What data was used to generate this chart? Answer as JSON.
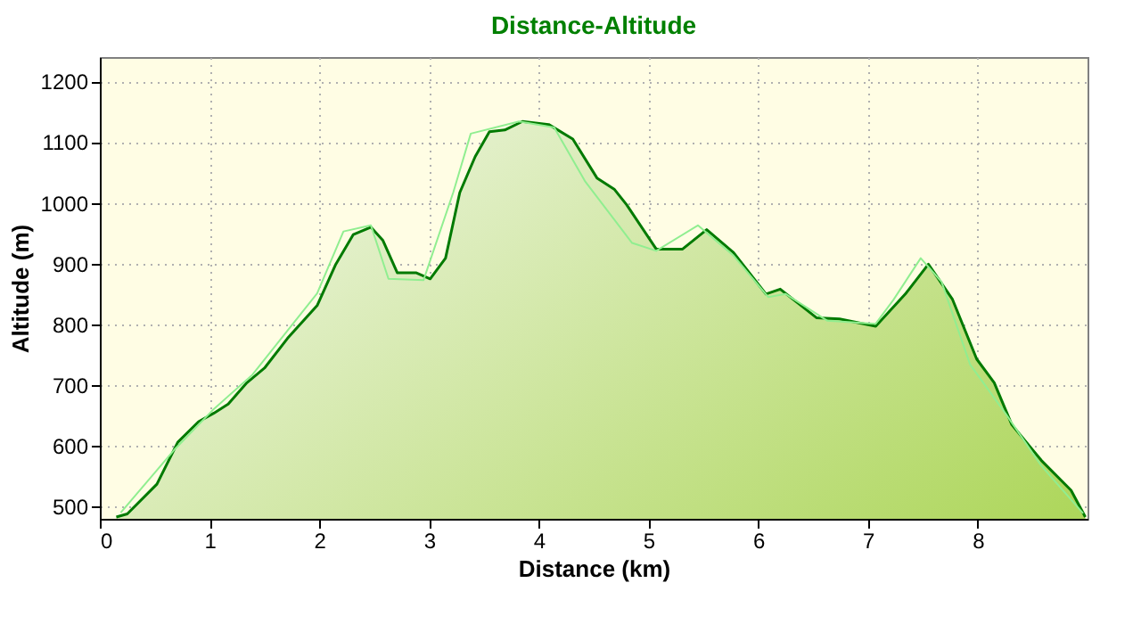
{
  "chart_data": {
    "type": "area",
    "title": "Distance-Altitude",
    "xlabel": "Distance (km)",
    "ylabel": "Altitude (m)",
    "xlim": [
      0,
      9
    ],
    "xticks": [
      0,
      1,
      2,
      3,
      4,
      5,
      6,
      7,
      8
    ],
    "ylim": [
      480,
      1240
    ],
    "yticks": [
      500,
      600,
      700,
      800,
      900,
      1000,
      1100,
      1200
    ],
    "grid": true,
    "series": [
      {
        "color": "#007a00",
        "x": [
          0.15,
          0.25,
          0.52,
          0.71,
          0.9,
          1.04,
          1.17,
          1.34,
          1.5,
          1.71,
          1.98,
          2.15,
          2.31,
          2.47,
          2.58,
          2.71,
          2.88,
          3.01,
          3.15,
          3.28,
          3.42,
          3.55,
          3.69,
          3.85,
          4.09,
          4.31,
          4.53,
          4.69,
          4.8,
          5.07,
          5.31,
          5.53,
          5.77,
          6.07,
          6.2,
          6.53,
          6.74,
          7.07,
          7.34,
          7.55,
          7.77,
          7.99,
          8.15,
          8.31,
          8.58,
          8.85,
          8.98
        ],
        "values": [
          483,
          488,
          537,
          606,
          640,
          654,
          669,
          704,
          728,
          777,
          831,
          899,
          948,
          960,
          938,
          885,
          885,
          875,
          909,
          1017,
          1076,
          1117,
          1120,
          1134,
          1129,
          1105,
          1041,
          1022,
          997,
          924,
          924,
          956,
          919,
          850,
          858,
          811,
          809,
          797,
          850,
          899,
          841,
          743,
          704,
          635,
          576,
          527,
          483
        ]
      },
      {
        "type": "line",
        "color": "#90ee90",
        "x": [
          0.19,
          0.69,
          1.04,
          1.39,
          1.98,
          2.22,
          2.47,
          2.63,
          2.95,
          3.22,
          3.38,
          3.82,
          4.14,
          4.42,
          4.85,
          5.07,
          5.45,
          5.77,
          6.09,
          6.25,
          6.63,
          7.07,
          7.23,
          7.48,
          7.67,
          7.93,
          8.25,
          8.58,
          8.96
        ],
        "values": [
          490,
          596,
          661,
          717,
          851,
          953,
          963,
          875,
          873,
          1017,
          1114,
          1134,
          1124,
          1036,
          934,
          921,
          963,
          914,
          845,
          850,
          806,
          801,
          840,
          909,
          870,
          734,
          654,
          567,
          489
        ]
      }
    ]
  }
}
